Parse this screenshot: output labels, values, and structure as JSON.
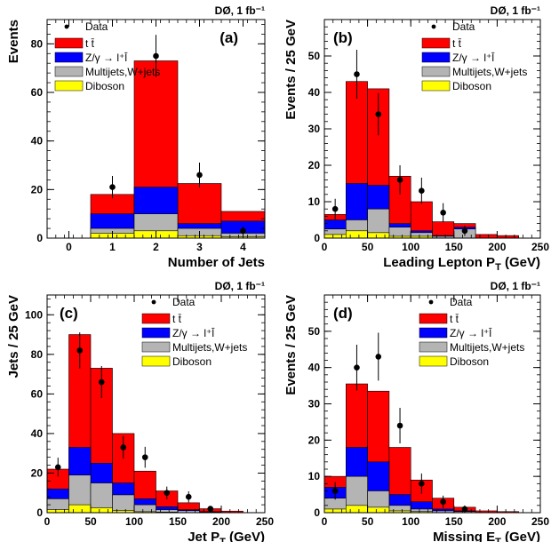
{
  "colors": {
    "ttbar": "#ff0000",
    "zgamma": "#0000ff",
    "multijets": "#b4b4b4",
    "diboson": "#ffff00",
    "data": "#000000",
    "axis": "#000000"
  },
  "legend_labels": {
    "data": "Data",
    "ttbar": "t t̄",
    "zgamma": "Z/γ → l⁺l̄",
    "multijets": "Multijets,W+jets",
    "diboson": "Diboson"
  },
  "chart_data": [
    {
      "type": "bar",
      "stacked": true,
      "panel_label": "(a)",
      "experiment_label": "DØ, 1 fb⁻¹",
      "xlabel": "Number of Jets",
      "ylabel": "Events",
      "xlim": [
        -0.5,
        4.5
      ],
      "ylim": [
        0,
        90
      ],
      "xticks": [
        0,
        1,
        2,
        3,
        4
      ],
      "xtick_labels": [
        "0",
        "1",
        "2",
        "3",
        "4"
      ],
      "yticks": [
        0,
        20,
        40,
        60,
        80
      ],
      "ytick_labels": [
        "0",
        "20",
        "40",
        "60",
        "80"
      ],
      "bins": [
        [
          0.5,
          1.5
        ],
        [
          1.5,
          2.5
        ],
        [
          2.5,
          3.5
        ],
        [
          3.5,
          4.5
        ]
      ],
      "stack": {
        "diboson": [
          2,
          3,
          1,
          0.5
        ],
        "multijets": [
          4,
          10,
          4,
          2
        ],
        "zgamma": [
          10,
          21,
          6,
          7
        ],
        "ttbar": [
          18,
          73,
          22.5,
          11
        ]
      },
      "data_points": [
        {
          "x": 1,
          "y": 21,
          "err": 4.6
        },
        {
          "x": 2,
          "y": 75,
          "err": 8.7
        },
        {
          "x": 3,
          "y": 26,
          "err": 5.1
        },
        {
          "x": 4,
          "y": 3,
          "err": 1.7
        }
      ],
      "legend_position": "top-left"
    },
    {
      "type": "bar",
      "stacked": true,
      "panel_label": "(b)",
      "experiment_label": "DØ, 1 fb⁻¹",
      "xlabel": "Leading Lepton P_T (GeV)",
      "ylabel": "Events / 25 GeV",
      "xlim": [
        0,
        250
      ],
      "ylim": [
        0,
        60
      ],
      "xticks": [
        0,
        50,
        100,
        150,
        200,
        250
      ],
      "xtick_labels": [
        "0",
        "50",
        "100",
        "150",
        "200",
        "250"
      ],
      "yticks": [
        0,
        10,
        20,
        30,
        40,
        50
      ],
      "ytick_labels": [
        "0",
        "10",
        "20",
        "30",
        "40",
        "50"
      ],
      "bins": [
        [
          0,
          25
        ],
        [
          25,
          50
        ],
        [
          50,
          75
        ],
        [
          75,
          100
        ],
        [
          100,
          125
        ],
        [
          125,
          150
        ],
        [
          150,
          175
        ],
        [
          175,
          200
        ],
        [
          200,
          225
        ],
        [
          225,
          250
        ]
      ],
      "stack": {
        "diboson": [
          1,
          2,
          1.5,
          0.5,
          0.5,
          0,
          0,
          0,
          0,
          0
        ],
        "multijets": [
          2.5,
          5,
          8,
          3,
          1.5,
          0.5,
          2.5,
          0,
          0,
          0
        ],
        "zgamma": [
          5,
          15,
          14.5,
          4,
          2,
          0.7,
          3,
          0,
          0,
          0
        ],
        "ttbar": [
          6.5,
          43,
          41,
          17,
          10,
          4.5,
          4,
          1,
          0.7,
          0
        ]
      },
      "data_points": [
        {
          "x": 12.5,
          "y": 8,
          "err": 2.8
        },
        {
          "x": 37.5,
          "y": 45,
          "err": 6.7
        },
        {
          "x": 62.5,
          "y": 34,
          "err": 5.8
        },
        {
          "x": 87.5,
          "y": 16,
          "err": 4.0
        },
        {
          "x": 112.5,
          "y": 13,
          "err": 3.6
        },
        {
          "x": 137.5,
          "y": 7,
          "err": 2.6
        },
        {
          "x": 162.5,
          "y": 2,
          "err": 1.4
        }
      ],
      "legend_position": "top-right"
    },
    {
      "type": "bar",
      "stacked": true,
      "panel_label": "(c)",
      "experiment_label": "DØ, 1 fb⁻¹",
      "xlabel": "Jet P_T (GeV)",
      "ylabel": "Jets / 25 GeV",
      "xlim": [
        0,
        250
      ],
      "ylim": [
        0,
        110
      ],
      "xticks": [
        0,
        50,
        100,
        150,
        200,
        250
      ],
      "xtick_labels": [
        "0",
        "50",
        "100",
        "150",
        "200",
        "250"
      ],
      "yticks": [
        0,
        20,
        40,
        60,
        80,
        100
      ],
      "ytick_labels": [
        "0",
        "20",
        "40",
        "60",
        "80",
        "100"
      ],
      "bins": [
        [
          0,
          25
        ],
        [
          25,
          50
        ],
        [
          50,
          75
        ],
        [
          75,
          100
        ],
        [
          100,
          125
        ],
        [
          125,
          150
        ],
        [
          150,
          175
        ],
        [
          175,
          200
        ],
        [
          200,
          225
        ],
        [
          225,
          250
        ]
      ],
      "stack": {
        "diboson": [
          1.5,
          4,
          2.5,
          1,
          0.5,
          0.3,
          0,
          0,
          0,
          0
        ],
        "multijets": [
          7,
          19,
          15,
          9,
          4,
          1.5,
          1,
          0.3,
          0,
          0
        ],
        "zgamma": [
          12,
          33,
          25,
          15,
          7,
          3,
          1.5,
          0.5,
          0,
          0
        ],
        "ttbar": [
          22,
          90,
          73,
          40,
          21,
          11,
          5,
          2,
          0.8,
          0
        ]
      },
      "data_points": [
        {
          "x": 12.5,
          "y": 23,
          "err": 4.8
        },
        {
          "x": 37.5,
          "y": 82,
          "err": 9.1
        },
        {
          "x": 62.5,
          "y": 66,
          "err": 8.1
        },
        {
          "x": 87.5,
          "y": 33,
          "err": 5.7
        },
        {
          "x": 112.5,
          "y": 28,
          "err": 5.3
        },
        {
          "x": 137.5,
          "y": 10,
          "err": 3.2
        },
        {
          "x": 162.5,
          "y": 8,
          "err": 2.8
        },
        {
          "x": 187.5,
          "y": 2,
          "err": 1.4
        }
      ],
      "legend_position": "top-right"
    },
    {
      "type": "bar",
      "stacked": true,
      "panel_label": "(d)",
      "experiment_label": "DØ, 1 fb⁻¹",
      "xlabel": "Missing E_T (GeV)",
      "ylabel": "Events / 25 GeV",
      "xlim": [
        0,
        250
      ],
      "ylim": [
        0,
        60
      ],
      "xticks": [
        0,
        50,
        100,
        150,
        200,
        250
      ],
      "xtick_labels": [
        "0",
        "50",
        "100",
        "150",
        "200",
        "250"
      ],
      "yticks": [
        0,
        10,
        20,
        30,
        40,
        50
      ],
      "ytick_labels": [
        "0",
        "10",
        "20",
        "30",
        "40",
        "50"
      ],
      "bins": [
        [
          0,
          25
        ],
        [
          25,
          50
        ],
        [
          50,
          75
        ],
        [
          75,
          100
        ],
        [
          100,
          125
        ],
        [
          125,
          150
        ],
        [
          150,
          175
        ],
        [
          175,
          200
        ],
        [
          200,
          225
        ],
        [
          225,
          250
        ]
      ],
      "stack": {
        "diboson": [
          1,
          2,
          1.5,
          0.5,
          0.3,
          0,
          0,
          0,
          0,
          0
        ],
        "multijets": [
          4,
          10,
          6,
          2,
          1,
          0.5,
          0.3,
          0,
          0,
          0
        ],
        "zgamma": [
          7,
          18,
          14,
          5,
          3,
          1,
          0.5,
          0,
          0,
          0
        ],
        "ttbar": [
          10,
          35.5,
          33.5,
          18,
          9,
          4,
          1.5,
          0.5,
          0.3,
          0
        ]
      },
      "data_points": [
        {
          "x": 12.5,
          "y": 6,
          "err": 2.4
        },
        {
          "x": 37.5,
          "y": 40,
          "err": 6.3
        },
        {
          "x": 62.5,
          "y": 43,
          "err": 6.6
        },
        {
          "x": 87.5,
          "y": 24,
          "err": 4.9
        },
        {
          "x": 112.5,
          "y": 8,
          "err": 2.8
        },
        {
          "x": 137.5,
          "y": 3,
          "err": 1.7
        },
        {
          "x": 162.5,
          "y": 1,
          "err": 1.0
        }
      ],
      "legend_position": "top-right"
    }
  ]
}
